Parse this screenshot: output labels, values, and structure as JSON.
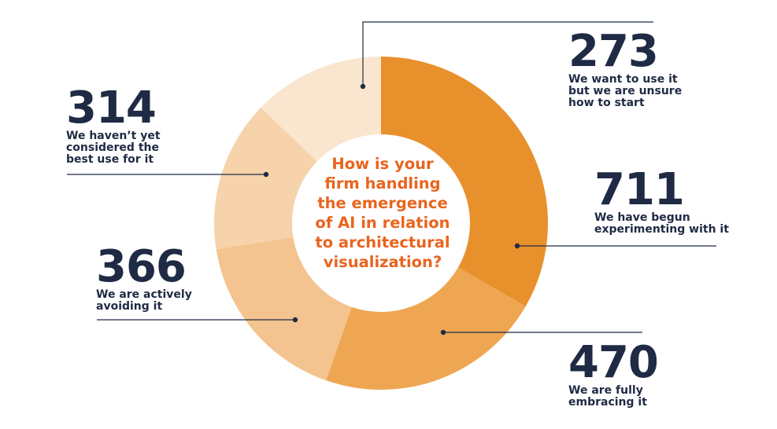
{
  "chart_data": {
    "type": "pie",
    "donut": true,
    "title": "How is your firm handling the emergence of AI in relation to architectural visualization?",
    "title_lines": [
      "How is your",
      "firm handling",
      "the emergence",
      "of AI in relation",
      "to architectural",
      "visualization?"
    ],
    "categories": [
      "We want to use it but we are unsure how to start",
      "We have begun experimenting with it",
      "We are fully embracing it",
      "We are actively avoiding it",
      "We haven't yet considered the best use for it"
    ],
    "values": [
      273,
      711,
      470,
      366,
      314
    ],
    "labels": [
      {
        "value": "273",
        "text": "We want to use it\nbut we are unsure\nhow to start"
      },
      {
        "value": "711",
        "text": "We have begun\nexperimenting with it"
      },
      {
        "value": "470",
        "text": "We are fully\nembracing it"
      },
      {
        "value": "366",
        "text": "We are actively\navoiding it"
      },
      {
        "value": "314",
        "text": "We haven’t yet\nconsidered the\nbest use for it"
      }
    ],
    "colors": [
      "#e8902c",
      "#e8902c",
      "#eea95a",
      "#f2c590",
      "#f7d9b7"
    ],
    "start_segment_color": "#fae6cf",
    "text_color": "#1f2a44",
    "title_color": "#e9641f",
    "leader_color": "#1f2a44"
  }
}
